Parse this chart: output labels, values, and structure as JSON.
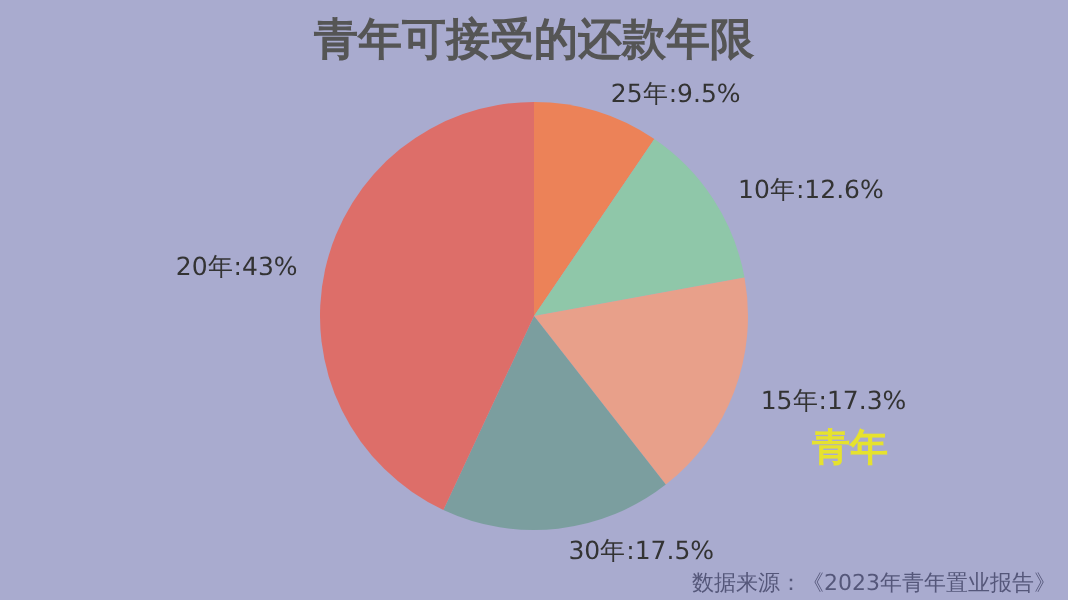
{
  "chart_data": {
    "type": "pie",
    "title": "青年可接受的还款年限",
    "categories": [
      "25年",
      "10年",
      "15年",
      "30年",
      "20年"
    ],
    "values": [
      9.5,
      12.6,
      17.3,
      17.5,
      43
    ],
    "value_labels": [
      "9.5%",
      "12.6%",
      "17.3%",
      "17.5%",
      "43%"
    ],
    "colors": [
      "#ec8258",
      "#8fc7a9",
      "#e8a08a",
      "#7b9e9f",
      "#dd6e69"
    ],
    "annotations": [
      "青年",
      "数据来源：《2023年青年置业报告》"
    ]
  }
}
